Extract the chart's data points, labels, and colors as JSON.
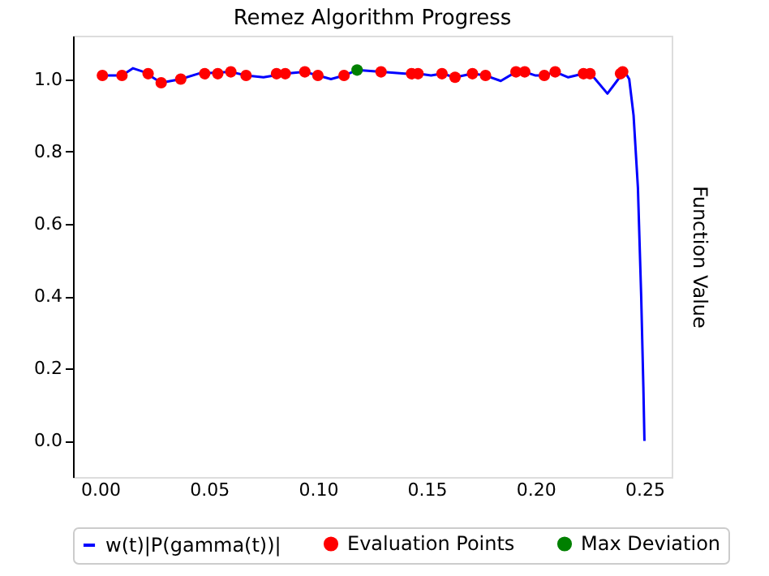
{
  "chart_data": {
    "type": "line",
    "title": "Remez Algorithm Progress",
    "ylabel": "Function Value",
    "xlim": [
      -0.0125,
      0.2625
    ],
    "ylim": [
      -0.1,
      1.12
    ],
    "xticks": [
      {
        "value": 0,
        "label": "0.00"
      },
      {
        "value": 0.05,
        "label": "0.05"
      },
      {
        "value": 0.1,
        "label": "0.10"
      },
      {
        "value": 0.15,
        "label": "0.15"
      },
      {
        "value": 0.2,
        "label": "0.20"
      },
      {
        "value": 0.25,
        "label": "0.25"
      }
    ],
    "yticks": [
      {
        "value": 0,
        "label": "0.0"
      },
      {
        "value": 0.2,
        "label": "0.2"
      },
      {
        "value": 0.4,
        "label": "0.4"
      },
      {
        "value": 0.6,
        "label": "0.6"
      },
      {
        "value": 0.8,
        "label": "0.8"
      },
      {
        "value": 1,
        "label": "1.0"
      }
    ],
    "legend": "bottom",
    "grid": false,
    "series": [
      {
        "name": "w(t)|P(gamma(t))|",
        "line_style": "solid",
        "color": "#0000ff",
        "x": [
          0,
          0.01,
          0.015,
          0.02,
          0.028,
          0.037,
          0.045,
          0.06,
          0.067,
          0.075,
          0.085,
          0.094,
          0.1,
          0.106,
          0.112,
          0.118,
          0.129,
          0.14,
          0.146,
          0.152,
          0.157,
          0.163,
          0.171,
          0.177,
          0.184,
          0.191,
          0.195,
          0.2,
          0.204,
          0.209,
          0.215,
          0.222,
          0.226,
          0.233,
          0.238,
          0.241,
          0.243,
          0.245,
          0.247,
          0.2485,
          0.2495,
          0.25
        ],
        "values": [
          1.01,
          1.01,
          1.03,
          1.02,
          0.99,
          1.0,
          1.015,
          1.02,
          1.01,
          1.005,
          1.015,
          1.02,
          1.01,
          1.0,
          1.01,
          1.025,
          1.02,
          1.015,
          1.015,
          1.01,
          1.015,
          1.005,
          1.015,
          1.01,
          0.995,
          1.02,
          1.02,
          1.01,
          1.01,
          1.02,
          1.005,
          1.015,
          1.01,
          0.96,
          1.0,
          1.02,
          1.0,
          0.9,
          0.7,
          0.4,
          0.15,
          0.0
        ]
      },
      {
        "name": "Evaluation Points",
        "type": "scatter",
        "marker": "circle",
        "color": "#ff0000",
        "x": [
          0.001,
          0.01,
          0.022,
          0.028,
          0.037,
          0.048,
          0.054,
          0.06,
          0.067,
          0.081,
          0.085,
          0.094,
          0.1,
          0.112,
          0.129,
          0.143,
          0.146,
          0.157,
          0.163,
          0.171,
          0.177,
          0.191,
          0.195,
          0.204,
          0.209,
          0.222,
          0.225,
          0.239,
          0.24
        ],
        "values": [
          1.01,
          1.01,
          1.015,
          0.99,
          1.0,
          1.015,
          1.015,
          1.02,
          1.01,
          1.015,
          1.015,
          1.02,
          1.01,
          1.01,
          1.02,
          1.015,
          1.015,
          1.015,
          1.005,
          1.015,
          1.01,
          1.02,
          1.02,
          1.01,
          1.02,
          1.015,
          1.015,
          1.015,
          1.02
        ]
      },
      {
        "name": "Max Deviation",
        "type": "scatter",
        "marker": "circle",
        "color": "#008000",
        "x": [
          0.118
        ],
        "values": [
          1.025
        ]
      }
    ]
  }
}
